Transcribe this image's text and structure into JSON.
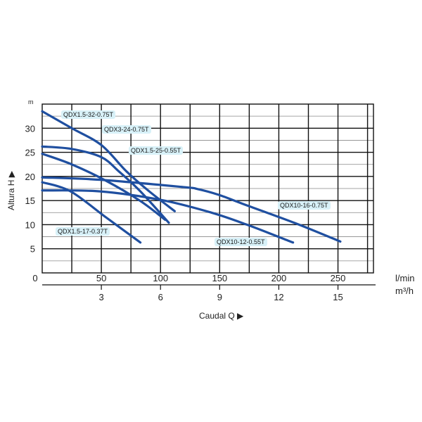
{
  "chart_data": {
    "type": "line",
    "xlabel": "Caudal Q ▶",
    "ylabel": "Altura H ▶",
    "y_unit": "m",
    "x_unit_primary": "l/min",
    "x_unit_secondary": "m³/h",
    "xlim": [
      0,
      280
    ],
    "ylim": [
      0,
      35
    ],
    "grid": true,
    "x_ticks": [
      "0",
      "50",
      "100",
      "150",
      "200",
      "250"
    ],
    "x_tick_values": [
      0,
      50,
      100,
      150,
      200,
      250
    ],
    "x2_ticks": [
      "3",
      "6",
      "9",
      "12",
      "15"
    ],
    "x2_tick_values": [
      3,
      6,
      9,
      12,
      15
    ],
    "y_ticks": [
      "5",
      "10",
      "15",
      "20",
      "25",
      "30"
    ],
    "y_tick_values": [
      5,
      10,
      15,
      20,
      25,
      30
    ],
    "line_color": "#1f4fa0",
    "label_bg": "#d8f1f8",
    "series": [
      {
        "name": "QDX1.5-32-0.75T",
        "x": [
          0,
          25,
          50,
          71,
          90,
          112
        ],
        "y": [
          33.5,
          30,
          26.5,
          21.1,
          17,
          12.8
        ]
      },
      {
        "name": "QDX3-24-0.75T",
        "x": [
          0,
          25,
          50,
          65,
          83,
          107
        ],
        "y": [
          26.2,
          25.7,
          24,
          21,
          16.9,
          10.4
        ]
      },
      {
        "name": "QDX1.5-25-0.55T",
        "x": [
          0,
          25,
          54,
          83,
          104
        ],
        "y": [
          24.7,
          22.5,
          19.1,
          14.9,
          11
        ]
      },
      {
        "name": "QDX1.5-17-0.37T",
        "x": [
          0,
          24,
          54,
          83
        ],
        "y": [
          18.8,
          16.9,
          11.5,
          6.3
        ]
      },
      {
        "name": "QDX10-16-0.75T",
        "x": [
          0,
          49,
          119,
          131,
          149,
          173,
          214,
          252
        ],
        "y": [
          19.8,
          19.3,
          17.8,
          17.4,
          16.2,
          14,
          10.3,
          6.5
        ]
      },
      {
        "name": "QDX10-12-0.55T",
        "x": [
          0,
          49,
          101,
          143,
          173,
          212
        ],
        "y": [
          17.1,
          16.9,
          15.1,
          12.5,
          10,
          6.3
        ]
      }
    ]
  }
}
